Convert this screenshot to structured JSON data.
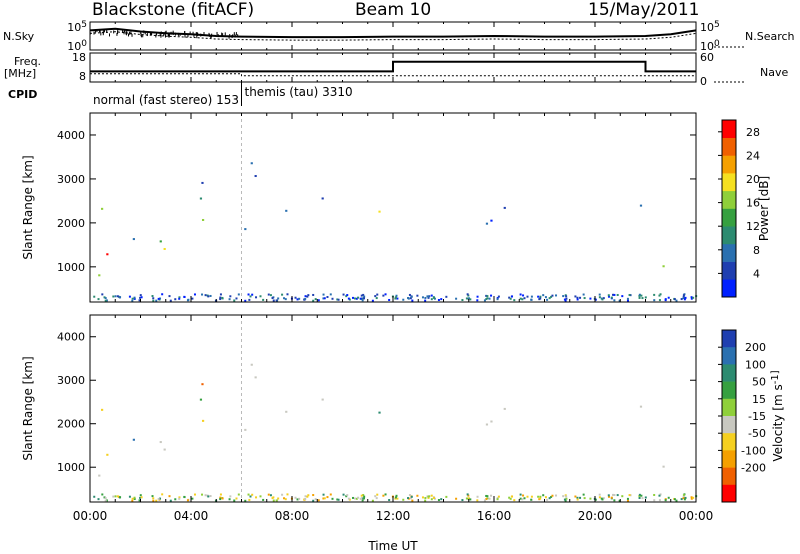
{
  "header": {
    "station": "Blackstone (fitACF)",
    "beam": "Beam 10",
    "date": "15/May/2011"
  },
  "left_labels": {
    "nsky": "N.Sky",
    "freq": "Freq.",
    "freq_unit": "[MHz]",
    "cpid": "CPID"
  },
  "right_labels": {
    "nsearch": "N.Search",
    "nave": "Nave"
  },
  "panels": {
    "noise_ticks_left": [
      "10^5",
      "10^0"
    ],
    "noise_ticks_right": [
      "10^5",
      "10^0"
    ],
    "freq_ticks_left": [
      "18",
      "8"
    ],
    "nave_ticks_right": [
      "60",
      "0"
    ]
  },
  "cpid_labels": [
    {
      "text": "normal (fast stereo) 153",
      "start_hour": 0
    },
    {
      "text": "themis (tau) 3310",
      "start_hour": 6
    }
  ],
  "colors": {
    "power": [
      "#0020ff",
      "#1f3fb0",
      "#2a70b0",
      "#2c8b70",
      "#36a040",
      "#8fcf3a",
      "#f5e020",
      "#f5a000",
      "#f06000",
      "#ff0000"
    ],
    "velocity": [
      "#1f3fb0",
      "#2a70b0",
      "#2c8b70",
      "#36a040",
      "#8fcf3a",
      "#c8c8c0",
      "#f5d020",
      "#f5a000",
      "#f06000",
      "#ff0000"
    ]
  },
  "chart_data": {
    "type": "heatmap",
    "x": {
      "label": "Time UT",
      "range": [
        0,
        24
      ],
      "ticks": [
        "00:00",
        "04:00",
        "08:00",
        "12:00",
        "16:00",
        "20:00",
        "00:00"
      ]
    },
    "y": {
      "label": "Slant Range [km]",
      "range": [
        200,
        4500
      ],
      "ticks": [
        1000,
        2000,
        3000,
        4000
      ]
    },
    "panels": [
      {
        "name": "power",
        "colorbar_label": "Power [dB]",
        "colorbar_ticks": [
          4,
          8,
          12,
          16,
          20,
          24,
          28
        ],
        "colorbar_range": [
          0,
          30
        ]
      },
      {
        "name": "velocity",
        "colorbar_label": "Velocity [m s^-1]",
        "colorbar_ticks": [
          200,
          100,
          50,
          15,
          -15,
          -50,
          -100,
          -200
        ]
      }
    ],
    "scatter_regions": [
      {
        "x": [
          0,
          5.6
        ],
        "y": [
          600,
          1600
        ],
        "power": "high",
        "velocity": "low"
      },
      {
        "x": [
          0.4,
          5.5
        ],
        "y": [
          1400,
          3100
        ],
        "power": "mid",
        "velocity": "mixed"
      },
      {
        "x": [
          2.6,
          5.0
        ],
        "y": [
          2700,
          3150
        ],
        "power": "low",
        "velocity": "negative"
      },
      {
        "x": [
          5.8,
          9.2
        ],
        "y": [
          1700,
          4100
        ],
        "power": "low",
        "velocity": "low"
      },
      {
        "x": [
          10.8,
          12.0
        ],
        "y": [
          1100,
          2400
        ],
        "power": "high",
        "velocity": "positive"
      },
      {
        "x": [
          12.0,
          22.0
        ],
        "y": [
          1700,
          2500
        ],
        "power": "low",
        "velocity": "low"
      },
      {
        "x": [
          22.0,
          24.0
        ],
        "y": [
          650,
          1700
        ],
        "power": "high",
        "velocity": "low"
      }
    ],
    "noise_sky_log": {
      "hours": [
        0,
        1,
        2,
        3,
        4,
        5,
        6,
        8,
        10,
        12,
        14,
        16,
        18,
        20,
        22,
        23,
        24
      ],
      "values": [
        3.5,
        3.8,
        3.3,
        3.0,
        2.8,
        2.5,
        2.4,
        2.3,
        2.3,
        2.4,
        2.4,
        2.5,
        2.4,
        2.4,
        2.5,
        2.8,
        3.5
      ]
    },
    "frequency_mhz": {
      "hours": [
        0,
        12,
        12,
        22,
        22,
        24
      ],
      "values": [
        10.5,
        10.5,
        15.5,
        15.5,
        10.5,
        10.5
      ]
    },
    "nave": {
      "hours": [
        0,
        6,
        6,
        24
      ],
      "values": [
        20,
        20,
        15,
        15
      ]
    }
  }
}
